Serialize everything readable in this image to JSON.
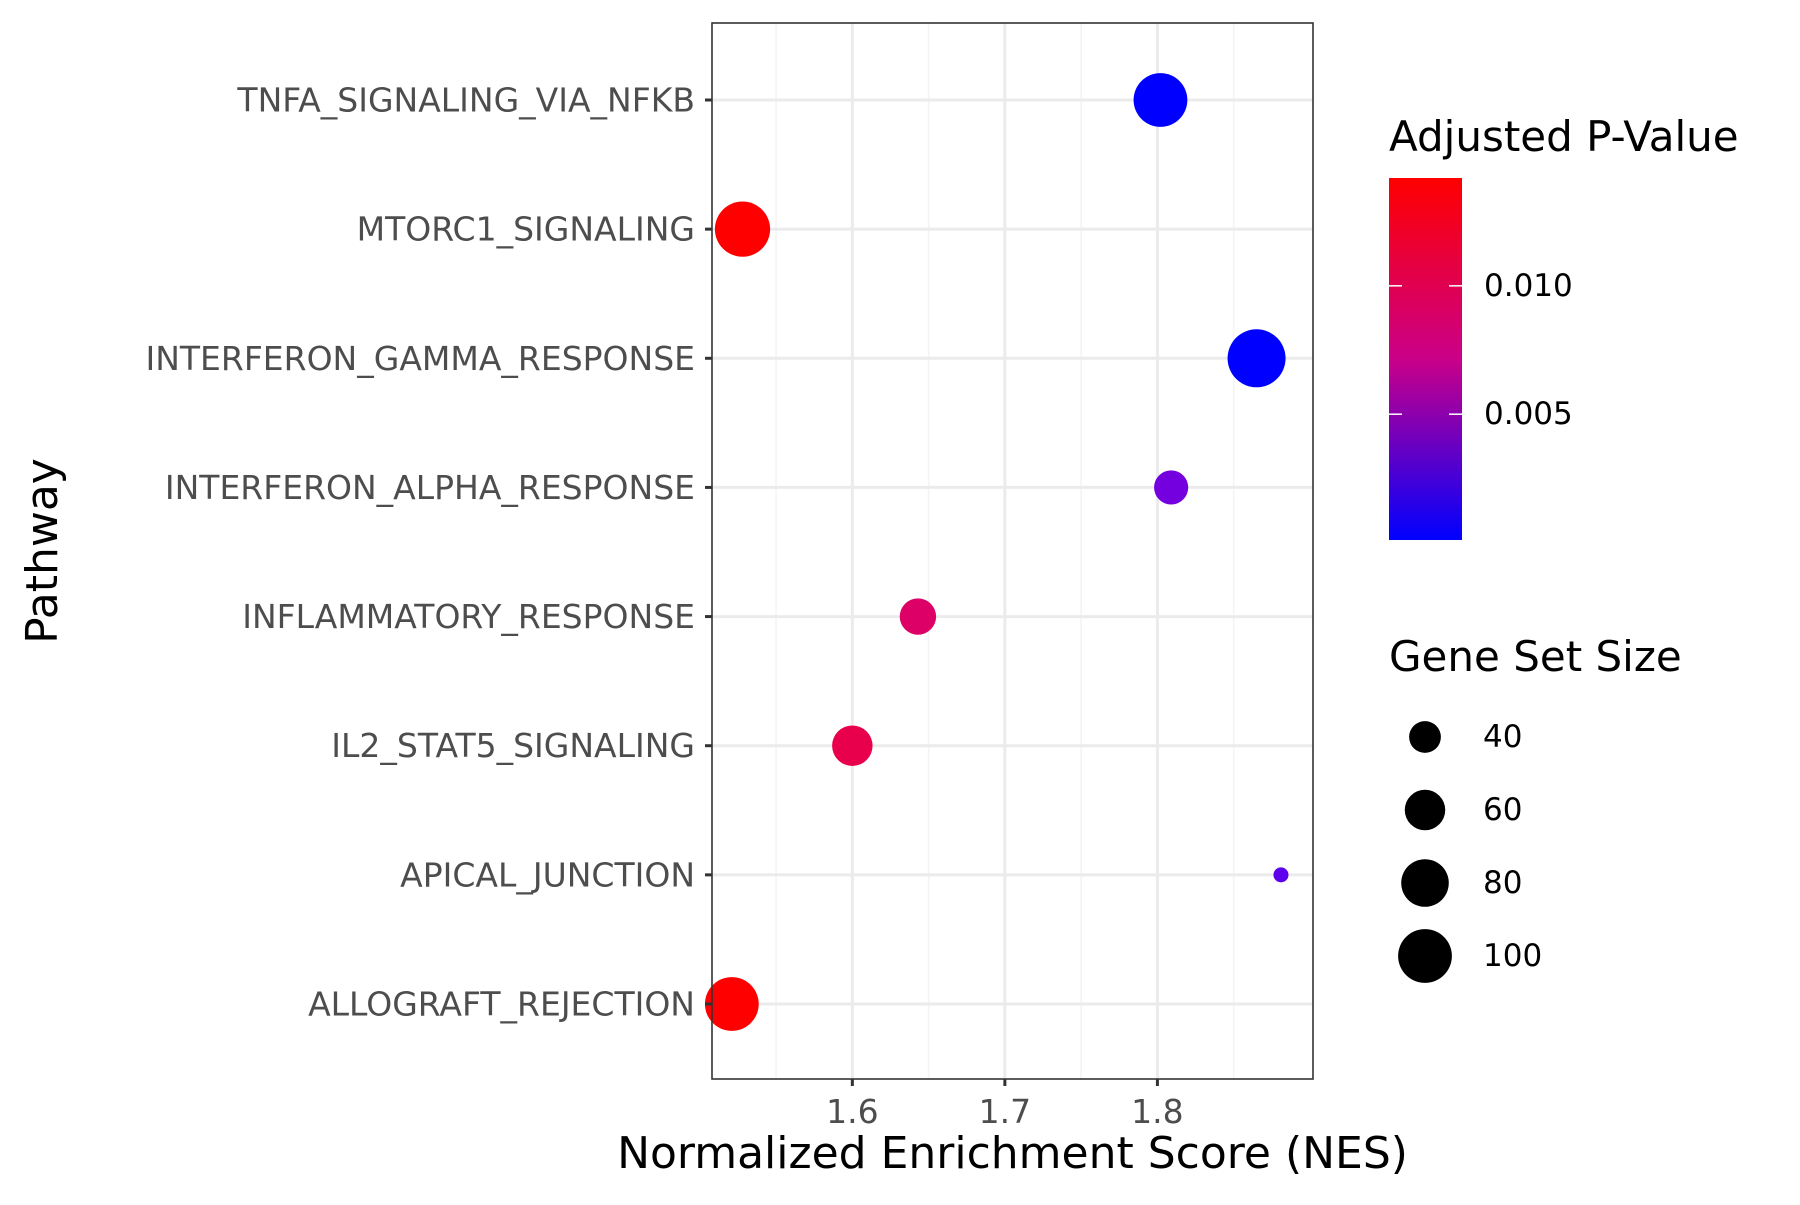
{
  "chart_data": {
    "type": "scatter",
    "title": "",
    "xlabel": "Normalized Enrichment Score (NES)",
    "ylabel": "Pathway",
    "xlim": [
      1.508,
      1.902
    ],
    "x_major_ticks": [
      1.6,
      1.7,
      1.8
    ],
    "x_tick_labels": [
      "1.6",
      "1.7",
      "1.8"
    ],
    "x_minor_ticks": [
      1.55,
      1.65,
      1.75,
      1.85
    ],
    "grid": true,
    "categories": [
      "ALLOGRAFT_REJECTION",
      "APICAL_JUNCTION",
      "IL2_STAT5_SIGNALING",
      "INFLAMMATORY_RESPONSE",
      "INTERFERON_ALPHA_RESPONSE",
      "INTERFERON_GAMMA_RESPONSE",
      "MTORC1_SIGNALING",
      "TNFA_SIGNALING_VIA_NFKB"
    ],
    "points": [
      {
        "pathway": "TNFA_SIGNALING_VIA_NFKB",
        "nes": 1.802,
        "padj": 0.0001,
        "size": 100
      },
      {
        "pathway": "MTORC1_SIGNALING",
        "nes": 1.528,
        "padj": 0.0142,
        "size": 105
      },
      {
        "pathway": "INTERFERON_GAMMA_RESPONSE",
        "nes": 1.865,
        "padj": 0.0001,
        "size": 115
      },
      {
        "pathway": "INTERFERON_ALPHA_RESPONSE",
        "nes": 1.809,
        "padj": 0.0019,
        "size": 45
      },
      {
        "pathway": "INFLAMMATORY_RESPONSE",
        "nes": 1.643,
        "padj": 0.0092,
        "size": 50
      },
      {
        "pathway": "IL2_STAT5_SIGNALING",
        "nes": 1.6,
        "padj": 0.0108,
        "size": 60
      },
      {
        "pathway": "APICAL_JUNCTION",
        "nes": 1.881,
        "padj": 0.0012,
        "size": 15
      },
      {
        "pathway": "ALLOGRAFT_REJECTION",
        "nes": 1.521,
        "padj": 0.0142,
        "size": 100
      }
    ],
    "color_legend": {
      "title": "Adjusted P-Value",
      "low_color": "#0000FF",
      "high_color": "#FF0000",
      "min": 0.0001,
      "max": 0.0142,
      "ticks": [
        0.005,
        0.01
      ],
      "tick_labels": [
        "0.005",
        "0.010"
      ]
    },
    "size_legend": {
      "title": "Gene Set Size",
      "values": [
        40,
        60,
        80,
        100
      ],
      "labels": [
        "40",
        "60",
        "80",
        "100"
      ],
      "size_range": [
        15,
        115
      ]
    },
    "colors": {
      "grid_major": "#ebebeb",
      "grid_minor": "#f4f4f4",
      "panel_border": "#333333",
      "tick": "#333333",
      "tick_text": "#4d4d4d"
    }
  }
}
